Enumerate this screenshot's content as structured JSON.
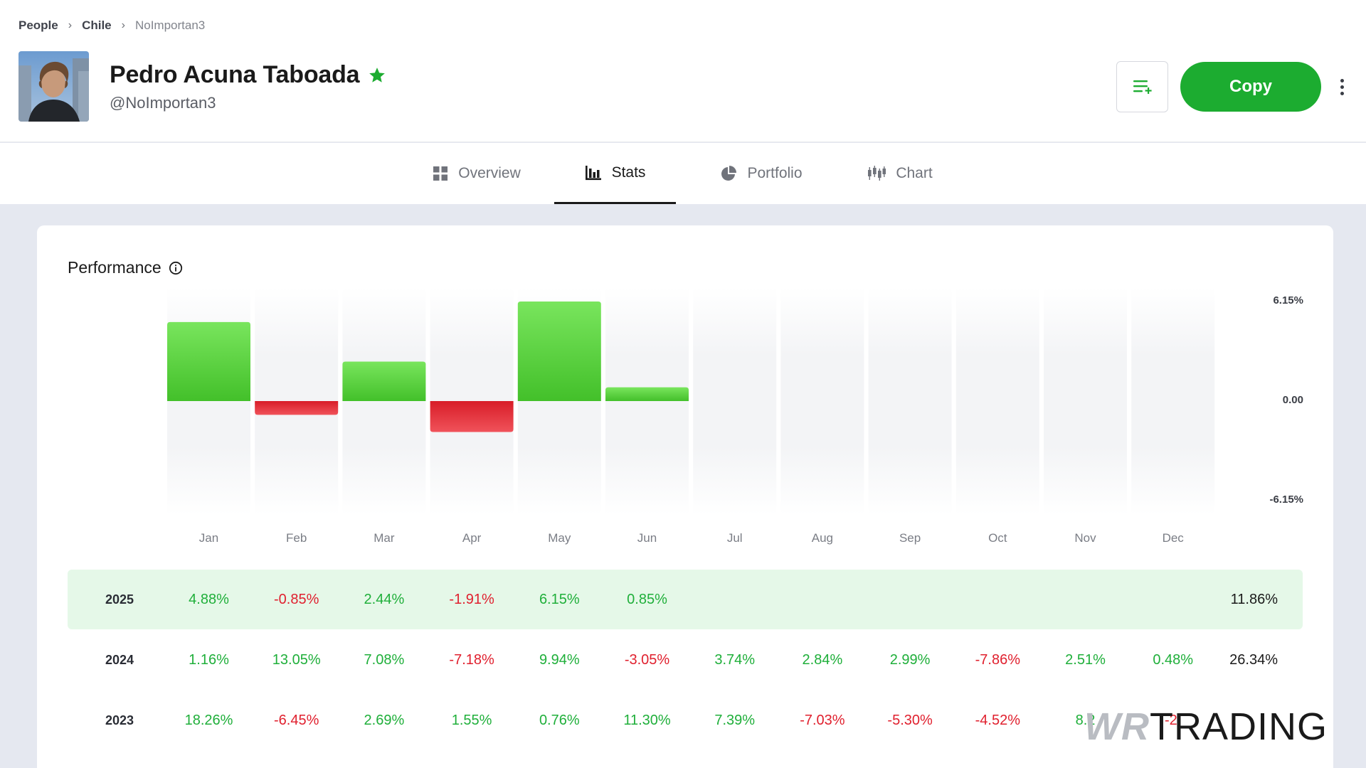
{
  "breadcrumb": [
    "People",
    "Chile",
    "NoImportan3"
  ],
  "profile": {
    "name": "Pedro Acuna Taboada",
    "handle": "@NoImportan3"
  },
  "actions": {
    "copy_label": "Copy"
  },
  "colors": {
    "accent": "#1cac30",
    "positive": "#1faf3a",
    "negative": "#e0202e",
    "current_row_bg": "#e5f8e8"
  },
  "tabs": [
    {
      "label": "Overview",
      "icon": "grid-icon",
      "active": false
    },
    {
      "label": "Stats",
      "icon": "bar-chart-icon",
      "active": true
    },
    {
      "label": "Portfolio",
      "icon": "pie-chart-icon",
      "active": false
    },
    {
      "label": "Chart",
      "icon": "candlestick-icon",
      "active": false
    }
  ],
  "performance": {
    "title": "Performance"
  },
  "chart_data": {
    "type": "bar",
    "categories": [
      "Jan",
      "Feb",
      "Mar",
      "Apr",
      "May",
      "Jun",
      "Jul",
      "Aug",
      "Sep",
      "Oct",
      "Nov",
      "Dec"
    ],
    "values": [
      4.88,
      -0.85,
      2.44,
      -1.91,
      6.15,
      0.85,
      null,
      null,
      null,
      null,
      null,
      null
    ],
    "y_tick_labels": [
      "6.15%",
      "0.00",
      "-6.15%"
    ],
    "ylim": [
      -6.15,
      6.15
    ],
    "grid": false
  },
  "table": {
    "rows": [
      {
        "year": "2025",
        "values": [
          "4.88%",
          "-0.85%",
          "2.44%",
          "-1.91%",
          "6.15%",
          "0.85%",
          "",
          "",
          "",
          "",
          "",
          ""
        ],
        "total": "11.86%",
        "highlight": true
      },
      {
        "year": "2024",
        "values": [
          "1.16%",
          "13.05%",
          "7.08%",
          "-7.18%",
          "9.94%",
          "-3.05%",
          "3.74%",
          "2.84%",
          "2.99%",
          "-7.86%",
          "2.51%",
          "0.48%"
        ],
        "total": "26.34%",
        "highlight": false
      },
      {
        "year": "2023",
        "values": [
          "18.26%",
          "-6.45%",
          "2.69%",
          "1.55%",
          "0.76%",
          "11.30%",
          "7.39%",
          "-7.03%",
          "-5.30%",
          "-4.52%",
          "8.2",
          "-2."
        ],
        "total": "",
        "highlight": false
      }
    ]
  },
  "watermark": {
    "part1": "WR",
    "part2": "TRADING"
  }
}
